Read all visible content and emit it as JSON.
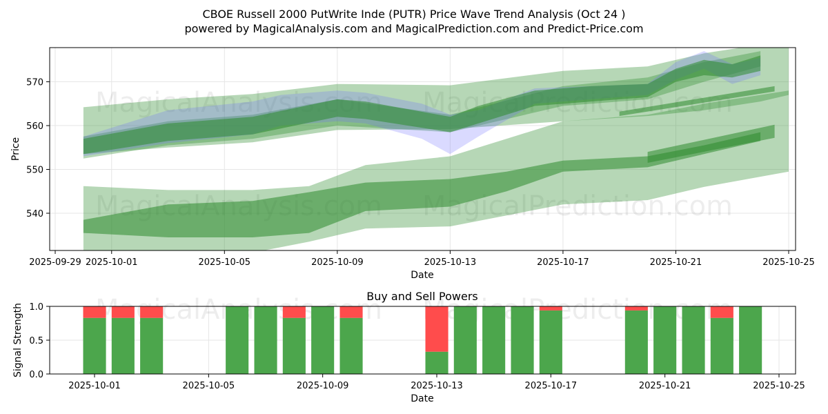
{
  "title_line1": "CBOE Russell 2000 PutWrite Inde (PUTR) Price Wave Trend Analysis (Oct 24 )",
  "title_line2": "powered by MagicalAnalysis.com and MagicalPrediction.com and Predict-Price.com",
  "watermarks": [
    "MagicalAnalysis.com",
    "MagicalPrediction.com"
  ],
  "colors": {
    "green": "#2e8b2e",
    "blue": "#6b6bff",
    "buy": "#4ca64c",
    "sell": "#ff4c4c",
    "grid": "#e6e6e6"
  },
  "chart_data": [
    {
      "type": "area",
      "title": "",
      "xlabel": "Date",
      "ylabel": "Price",
      "x_range": [
        "2025-09-29",
        "2025-10-25"
      ],
      "ylim": [
        531.5,
        577.8
      ],
      "x_ticks": [
        "2025-09-29",
        "2025-10-01",
        "2025-10-05",
        "2025-10-09",
        "2025-10-13",
        "2025-10-17",
        "2025-10-21",
        "2025-10-25"
      ],
      "y_ticks": [
        540,
        550,
        560,
        570
      ],
      "grid": true,
      "bands": [
        {
          "name": "upper-wave-wide",
          "color": "green",
          "opacity": 0.35,
          "x": [
            "2025-09-30",
            "2025-10-03",
            "2025-10-06",
            "2025-10-09",
            "2025-10-13",
            "2025-10-17",
            "2025-10-20",
            "2025-10-22",
            "2025-10-24",
            "2025-10-25"
          ],
          "upper": [
            564.2,
            566.0,
            567.2,
            569.5,
            569.2,
            572.5,
            573.5,
            576.5,
            578.5,
            578.5
          ],
          "lower": [
            553.5,
            555.0,
            556.2,
            559.0,
            559.2,
            561.0,
            562.2,
            563.5,
            565.5,
            567.0
          ]
        },
        {
          "name": "upper-wave-mid",
          "color": "green",
          "opacity": 0.35,
          "x": [
            "2025-09-30",
            "2025-10-03",
            "2025-10-06",
            "2025-10-09",
            "2025-10-13",
            "2025-10-17",
            "2025-10-20",
            "2025-10-22",
            "2025-10-24"
          ],
          "upper": [
            557.5,
            561.0,
            562.5,
            566.0,
            562.5,
            569.0,
            571.0,
            574.5,
            577.0
          ],
          "lower": [
            552.5,
            555.5,
            557.0,
            560.0,
            558.5,
            564.5,
            566.0,
            570.0,
            573.5
          ]
        },
        {
          "name": "upper-wave-blue",
          "color": "blue",
          "opacity": 0.25,
          "x": [
            "2025-09-30",
            "2025-10-03",
            "2025-10-06",
            "2025-10-07",
            "2025-10-09",
            "2025-10-10",
            "2025-10-12",
            "2025-10-13",
            "2025-10-14",
            "2025-10-16",
            "2025-10-18",
            "2025-10-20",
            "2025-10-21",
            "2025-10-22",
            "2025-10-23",
            "2025-10-24"
          ],
          "upper": [
            557.5,
            563.5,
            565.5,
            567.0,
            568.0,
            567.5,
            565.0,
            562.5,
            563.5,
            568.5,
            569.0,
            569.5,
            574.5,
            577.0,
            574.0,
            575.5
          ],
          "lower": [
            553.0,
            556.0,
            558.0,
            560.0,
            561.0,
            560.5,
            557.0,
            553.5,
            557.5,
            565.0,
            566.0,
            567.0,
            570.5,
            573.0,
            569.5,
            571.5
          ]
        },
        {
          "name": "upper-wave-core",
          "color": "green",
          "opacity": 0.55,
          "x": [
            "2025-09-30",
            "2025-10-03",
            "2025-10-06",
            "2025-10-09",
            "2025-10-10",
            "2025-10-13",
            "2025-10-14",
            "2025-10-16",
            "2025-10-18",
            "2025-10-20",
            "2025-10-21",
            "2025-10-22",
            "2025-10-23",
            "2025-10-24"
          ],
          "upper": [
            557.0,
            560.5,
            562.0,
            566.0,
            565.5,
            562.0,
            564.5,
            568.0,
            569.0,
            569.5,
            573.0,
            575.0,
            574.0,
            576.0
          ],
          "lower": [
            553.5,
            556.5,
            558.0,
            562.0,
            561.5,
            558.5,
            560.5,
            564.5,
            565.5,
            566.5,
            570.0,
            571.5,
            571.0,
            572.5
          ]
        },
        {
          "name": "lower-wave-wide",
          "color": "green",
          "opacity": 0.35,
          "x": [
            "2025-09-30",
            "2025-10-03",
            "2025-10-06",
            "2025-10-08",
            "2025-10-10",
            "2025-10-13",
            "2025-10-15",
            "2025-10-17",
            "2025-10-20",
            "2025-10-22",
            "2025-10-25"
          ],
          "upper": [
            546.2,
            545.3,
            545.3,
            546.2,
            551.0,
            553.0,
            557.0,
            561.0,
            562.5,
            565.0,
            568.0
          ],
          "lower": [
            530.0,
            530.0,
            531.0,
            533.5,
            536.5,
            537.0,
            539.5,
            542.0,
            543.0,
            546.0,
            549.5
          ]
        },
        {
          "name": "lower-wave-core",
          "color": "green",
          "opacity": 0.55,
          "x": [
            "2025-09-30",
            "2025-10-03",
            "2025-10-06",
            "2025-10-08",
            "2025-10-10",
            "2025-10-13",
            "2025-10-15",
            "2025-10-17",
            "2025-10-20",
            "2025-10-22",
            "2025-10-24"
          ],
          "upper": [
            538.5,
            542.0,
            542.8,
            544.8,
            547.0,
            547.8,
            549.5,
            552.0,
            553.0,
            555.5,
            558.5
          ],
          "lower": [
            535.5,
            534.5,
            534.5,
            535.5,
            540.5,
            541.5,
            545.0,
            549.5,
            550.5,
            553.5,
            556.5
          ]
        },
        {
          "name": "upper-trend-line",
          "color": "green",
          "opacity": 0.55,
          "x": [
            "2025-10-19",
            "2025-10-24.5"
          ],
          "upper": [
            563.2,
            569.0
          ],
          "lower": [
            562.2,
            567.8
          ]
        },
        {
          "name": "lower-trend-line",
          "color": "green",
          "opacity": 0.55,
          "x": [
            "2025-10-20",
            "2025-10-24.5"
          ],
          "upper": [
            554.0,
            560.2
          ],
          "lower": [
            551.5,
            557.2
          ]
        }
      ]
    },
    {
      "type": "bar",
      "title": "Buy and Sell Powers",
      "xlabel": "Date",
      "ylabel": "Signal Strength",
      "ylim": [
        0,
        1
      ],
      "y_ticks": [
        "0.0",
        "0.5",
        "1.0"
      ],
      "x_ticks": [
        "2025-10-01",
        "2025-10-05",
        "2025-10-09",
        "2025-10-13",
        "2025-10-17",
        "2025-10-21",
        "2025-10-25"
      ],
      "grid": true,
      "series": [
        {
          "name": "Buy",
          "dates": [
            "2025-10-01",
            "2025-10-02",
            "2025-10-03",
            "2025-10-06",
            "2025-10-07",
            "2025-10-08",
            "2025-10-09",
            "2025-10-10",
            "2025-10-13",
            "2025-10-14",
            "2025-10-15",
            "2025-10-16",
            "2025-10-17",
            "2025-10-20",
            "2025-10-21",
            "2025-10-22",
            "2025-10-23",
            "2025-10-24"
          ],
          "values": [
            0.83,
            0.83,
            0.83,
            1.0,
            1.0,
            0.83,
            1.0,
            0.83,
            0.33,
            1.0,
            1.0,
            1.0,
            0.94,
            0.94,
            1.0,
            1.0,
            0.83,
            1.0
          ]
        },
        {
          "name": "Sell",
          "values": [
            0.17,
            0.17,
            0.17,
            0.0,
            0.0,
            0.17,
            0.0,
            0.17,
            0.67,
            0.0,
            0.0,
            0.0,
            0.06,
            0.06,
            0.0,
            0.0,
            0.17,
            0.0
          ]
        }
      ]
    }
  ]
}
